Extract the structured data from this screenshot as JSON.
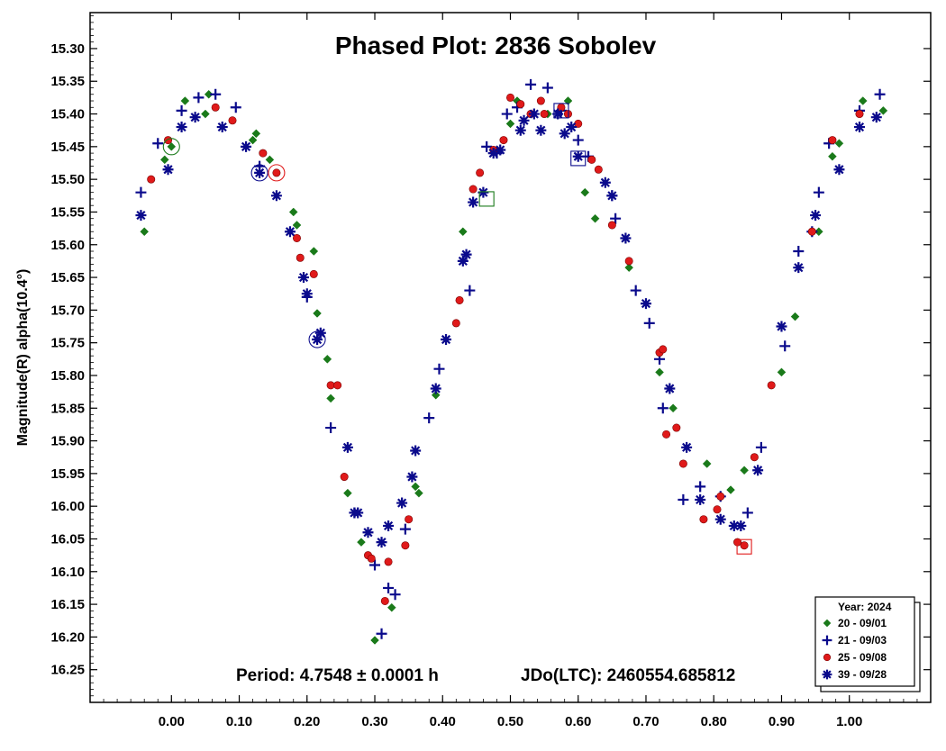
{
  "chart_data": {
    "type": "scatter",
    "title": "Phased Plot: 2836 Sobolev",
    "xlabel": "",
    "ylabel": "Magnitude(R) alpha(10.4°)",
    "xlim": [
      -0.12,
      1.12
    ],
    "ylim": [
      16.3,
      15.245
    ],
    "y_inverted": true,
    "x_ticks": [
      "0.00",
      "0.10",
      "0.20",
      "0.30",
      "0.40",
      "0.50",
      "0.60",
      "0.70",
      "0.80",
      "0.90",
      "1.00"
    ],
    "x_tick_values": [
      0,
      0.1,
      0.2,
      0.3,
      0.4,
      0.5,
      0.6,
      0.7,
      0.8,
      0.9,
      1.0
    ],
    "y_ticks": [
      "15.30",
      "15.35",
      "15.40",
      "15.45",
      "15.50",
      "15.55",
      "15.60",
      "15.65",
      "15.70",
      "15.75",
      "15.80",
      "15.85",
      "15.90",
      "15.95",
      "16.00",
      "16.05",
      "16.10",
      "16.15",
      "16.20",
      "16.25"
    ],
    "y_tick_values": [
      15.3,
      15.35,
      15.4,
      15.45,
      15.5,
      15.55,
      15.6,
      15.65,
      15.7,
      15.75,
      15.8,
      15.85,
      15.9,
      15.95,
      16.0,
      16.05,
      16.1,
      16.15,
      16.2,
      16.25
    ],
    "grid": false,
    "annotations": {
      "period": "Period: 4.7548 ± 0.0001 h",
      "jdo": "JDo(LTC): 2460554.685812"
    },
    "legend": {
      "title": "Year: 2024",
      "placement": "bottom-right"
    },
    "series": [
      {
        "name": "20 - 09/01",
        "marker": "diamond",
        "color": "#1a7a1a",
        "points": [
          [
            -0.04,
            15.58
          ],
          [
            -0.01,
            15.47
          ],
          [
            0.0,
            15.45
          ],
          [
            0.02,
            15.38
          ],
          [
            0.05,
            15.4
          ],
          [
            0.055,
            15.37
          ],
          [
            0.12,
            15.44
          ],
          [
            0.125,
            15.43
          ],
          [
            0.145,
            15.47
          ],
          [
            0.18,
            15.55
          ],
          [
            0.185,
            15.57
          ],
          [
            0.21,
            15.61
          ],
          [
            0.215,
            15.705
          ],
          [
            0.23,
            15.775
          ],
          [
            0.235,
            15.835
          ],
          [
            0.26,
            15.98
          ],
          [
            0.28,
            16.055
          ],
          [
            0.3,
            16.205
          ],
          [
            0.325,
            16.155
          ],
          [
            0.36,
            15.97
          ],
          [
            0.365,
            15.98
          ],
          [
            0.39,
            15.83
          ],
          [
            0.43,
            15.58
          ],
          [
            0.5,
            15.415
          ],
          [
            0.51,
            15.38
          ],
          [
            0.555,
            15.4
          ],
          [
            0.585,
            15.38
          ],
          [
            0.61,
            15.52
          ],
          [
            0.625,
            15.56
          ],
          [
            0.675,
            15.635
          ],
          [
            0.72,
            15.795
          ],
          [
            0.74,
            15.85
          ],
          [
            0.79,
            15.935
          ],
          [
            0.825,
            15.975
          ],
          [
            0.845,
            15.945
          ],
          [
            0.9,
            15.795
          ],
          [
            0.92,
            15.71
          ],
          [
            0.955,
            15.58
          ],
          [
            0.975,
            15.465
          ],
          [
            0.985,
            15.445
          ],
          [
            1.02,
            15.38
          ],
          [
            1.05,
            15.395
          ]
        ]
      },
      {
        "name": "21 - 09/03",
        "marker": "plus",
        "color": "#0a0a8c",
        "points": [
          [
            -0.045,
            15.52
          ],
          [
            -0.02,
            15.445
          ],
          [
            0.015,
            15.395
          ],
          [
            0.04,
            15.375
          ],
          [
            0.065,
            15.37
          ],
          [
            0.095,
            15.39
          ],
          [
            0.13,
            15.48
          ],
          [
            0.2,
            15.68
          ],
          [
            0.235,
            15.88
          ],
          [
            0.27,
            16.01
          ],
          [
            0.3,
            16.09
          ],
          [
            0.31,
            16.195
          ],
          [
            0.32,
            16.125
          ],
          [
            0.33,
            16.135
          ],
          [
            0.345,
            16.035
          ],
          [
            0.38,
            15.865
          ],
          [
            0.395,
            15.79
          ],
          [
            0.44,
            15.67
          ],
          [
            0.465,
            15.45
          ],
          [
            0.48,
            15.46
          ],
          [
            0.495,
            15.4
          ],
          [
            0.51,
            15.39
          ],
          [
            0.53,
            15.355
          ],
          [
            0.555,
            15.36
          ],
          [
            0.575,
            15.395
          ],
          [
            0.6,
            15.44
          ],
          [
            0.615,
            15.465
          ],
          [
            0.65,
            15.525
          ],
          [
            0.655,
            15.56
          ],
          [
            0.685,
            15.67
          ],
          [
            0.705,
            15.72
          ],
          [
            0.72,
            15.775
          ],
          [
            0.725,
            15.85
          ],
          [
            0.755,
            15.99
          ],
          [
            0.78,
            15.97
          ],
          [
            0.81,
            15.985
          ],
          [
            0.85,
            16.01
          ],
          [
            0.87,
            15.91
          ],
          [
            0.905,
            15.755
          ],
          [
            0.925,
            15.61
          ],
          [
            0.945,
            15.58
          ],
          [
            0.955,
            15.52
          ],
          [
            0.97,
            15.445
          ],
          [
            1.015,
            15.395
          ],
          [
            1.045,
            15.37
          ]
        ]
      },
      {
        "name": "25 - 09/08",
        "marker": "circle",
        "color": "#e01a1a",
        "points": [
          [
            -0.03,
            15.5
          ],
          [
            -0.005,
            15.44
          ],
          [
            0.065,
            15.39
          ],
          [
            0.09,
            15.41
          ],
          [
            0.135,
            15.46
          ],
          [
            0.155,
            15.49
          ],
          [
            0.185,
            15.59
          ],
          [
            0.19,
            15.62
          ],
          [
            0.21,
            15.645
          ],
          [
            0.235,
            15.815
          ],
          [
            0.245,
            15.815
          ],
          [
            0.255,
            15.955
          ],
          [
            0.29,
            16.075
          ],
          [
            0.295,
            16.08
          ],
          [
            0.315,
            16.145
          ],
          [
            0.32,
            16.085
          ],
          [
            0.345,
            16.06
          ],
          [
            0.35,
            16.02
          ],
          [
            0.42,
            15.72
          ],
          [
            0.425,
            15.685
          ],
          [
            0.445,
            15.515
          ],
          [
            0.455,
            15.49
          ],
          [
            0.475,
            15.455
          ],
          [
            0.49,
            15.44
          ],
          [
            0.5,
            15.375
          ],
          [
            0.515,
            15.385
          ],
          [
            0.53,
            15.4
          ],
          [
            0.545,
            15.38
          ],
          [
            0.55,
            15.4
          ],
          [
            0.575,
            15.39
          ],
          [
            0.585,
            15.4
          ],
          [
            0.6,
            15.415
          ],
          [
            0.62,
            15.47
          ],
          [
            0.63,
            15.485
          ],
          [
            0.65,
            15.57
          ],
          [
            0.675,
            15.625
          ],
          [
            0.72,
            15.765
          ],
          [
            0.725,
            15.76
          ],
          [
            0.73,
            15.89
          ],
          [
            0.745,
            15.88
          ],
          [
            0.755,
            15.935
          ],
          [
            0.785,
            16.02
          ],
          [
            0.805,
            16.005
          ],
          [
            0.81,
            15.985
          ],
          [
            0.835,
            16.055
          ],
          [
            0.845,
            16.06
          ],
          [
            0.86,
            15.925
          ],
          [
            0.885,
            15.815
          ],
          [
            0.945,
            15.58
          ],
          [
            0.975,
            15.44
          ],
          [
            1.015,
            15.4
          ]
        ]
      },
      {
        "name": "39 - 09/28",
        "marker": "asterisk",
        "color": "#0a0a8c",
        "points": [
          [
            -0.045,
            15.555
          ],
          [
            -0.005,
            15.485
          ],
          [
            0.015,
            15.42
          ],
          [
            0.035,
            15.405
          ],
          [
            0.075,
            15.42
          ],
          [
            0.11,
            15.45
          ],
          [
            0.13,
            15.49
          ],
          [
            0.155,
            15.525
          ],
          [
            0.175,
            15.58
          ],
          [
            0.195,
            15.65
          ],
          [
            0.2,
            15.675
          ],
          [
            0.215,
            15.745
          ],
          [
            0.22,
            15.735
          ],
          [
            0.26,
            15.91
          ],
          [
            0.27,
            16.01
          ],
          [
            0.275,
            16.01
          ],
          [
            0.29,
            16.04
          ],
          [
            0.31,
            16.055
          ],
          [
            0.32,
            16.03
          ],
          [
            0.34,
            15.995
          ],
          [
            0.355,
            15.955
          ],
          [
            0.36,
            15.915
          ],
          [
            0.39,
            15.82
          ],
          [
            0.405,
            15.745
          ],
          [
            0.43,
            15.625
          ],
          [
            0.435,
            15.615
          ],
          [
            0.445,
            15.535
          ],
          [
            0.46,
            15.52
          ],
          [
            0.475,
            15.46
          ],
          [
            0.485,
            15.455
          ],
          [
            0.515,
            15.425
          ],
          [
            0.52,
            15.41
          ],
          [
            0.535,
            15.4
          ],
          [
            0.545,
            15.425
          ],
          [
            0.57,
            15.4
          ],
          [
            0.58,
            15.43
          ],
          [
            0.59,
            15.42
          ],
          [
            0.6,
            15.465
          ],
          [
            0.64,
            15.505
          ],
          [
            0.65,
            15.525
          ],
          [
            0.67,
            15.59
          ],
          [
            0.7,
            15.69
          ],
          [
            0.735,
            15.82
          ],
          [
            0.76,
            15.91
          ],
          [
            0.78,
            15.99
          ],
          [
            0.81,
            16.02
          ],
          [
            0.83,
            16.03
          ],
          [
            0.84,
            16.03
          ],
          [
            0.865,
            15.945
          ],
          [
            0.9,
            15.725
          ],
          [
            0.925,
            15.635
          ],
          [
            0.95,
            15.555
          ],
          [
            0.985,
            15.485
          ],
          [
            1.015,
            15.42
          ],
          [
            1.04,
            15.405
          ]
        ]
      }
    ],
    "highlighted": [
      {
        "x": 0.0,
        "y": 15.45,
        "color": "#1a7a1a",
        "shape": "circle"
      },
      {
        "x": 0.13,
        "y": 15.49,
        "color": "#0a0a8c",
        "shape": "circle"
      },
      {
        "x": 0.155,
        "y": 15.49,
        "color": "#e01a1a",
        "shape": "circle"
      },
      {
        "x": 0.215,
        "y": 15.745,
        "color": "#0a0a8c",
        "shape": "circle"
      },
      {
        "x": 0.465,
        "y": 15.53,
        "color": "#1a7a1a",
        "shape": "square"
      },
      {
        "x": 0.575,
        "y": 15.395,
        "color": "#0a0a8c",
        "shape": "square"
      },
      {
        "x": 0.6,
        "y": 15.468,
        "color": "#0a0a8c",
        "shape": "square"
      },
      {
        "x": 0.845,
        "y": 16.062,
        "color": "#e01a1a",
        "shape": "square"
      }
    ]
  }
}
